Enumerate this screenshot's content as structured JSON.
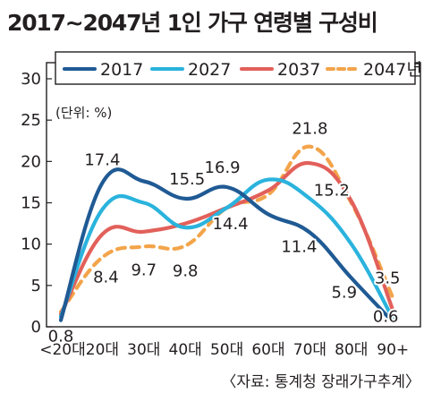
{
  "chart_data": {
    "type": "line",
    "title": "2017~2047년 1인 가구 연령별 구성비",
    "unit_note": "(단위: %)",
    "source": "〈자료: 통계청 장래가구추계〉",
    "categories": [
      "<20대",
      "20대",
      "30대",
      "40대",
      "50대",
      "60대",
      "70대",
      "80대",
      "90+"
    ],
    "ylim": [
      0,
      30
    ],
    "yticks": [
      "0",
      "5",
      "10",
      "15",
      "20",
      "25",
      "30"
    ],
    "legend_position": "top",
    "series": [
      {
        "name": "2017",
        "color": "#1f5a94",
        "dash": false,
        "values": [
          0.8,
          17.4,
          17.6,
          15.5,
          16.9,
          13.6,
          11.4,
          5.9,
          0.6
        ]
      },
      {
        "name": "2027",
        "color": "#2ab3dd",
        "dash": false,
        "values": [
          1.2,
          14.2,
          15.0,
          12.0,
          14.4,
          17.8,
          15.5,
          10.0,
          1.0
        ]
      },
      {
        "name": "2037",
        "color": "#e2605a",
        "dash": false,
        "values": [
          1.5,
          11.2,
          11.5,
          12.5,
          14.4,
          16.5,
          19.8,
          15.2,
          2.0
        ]
      },
      {
        "name": "2047년",
        "color": "#f3a44a",
        "dash": true,
        "values": [
          1.8,
          8.4,
          9.7,
          9.8,
          14.4,
          16.0,
          21.8,
          15.0,
          3.5
        ]
      }
    ],
    "data_labels": [
      {
        "text": "0.8",
        "category": 0,
        "value": 0.8
      },
      {
        "text": "8.4",
        "category": 1,
        "value": 8.4
      },
      {
        "text": "17.4",
        "category": 1,
        "value": 17.4
      },
      {
        "text": "9.7",
        "category": 2,
        "value": 9.7
      },
      {
        "text": "15.5",
        "category": 3,
        "value": 15.5
      },
      {
        "text": "9.8",
        "category": 3,
        "value": 9.8
      },
      {
        "text": "16.9",
        "category": 4,
        "value": 16.9
      },
      {
        "text": "14.4",
        "category": 4,
        "value": 14.4
      },
      {
        "text": "11.4",
        "category": 6,
        "value": 11.4
      },
      {
        "text": "21.8",
        "category": 6,
        "value": 21.8
      },
      {
        "text": "5.9",
        "category": 7,
        "value": 5.9
      },
      {
        "text": "15.2",
        "category": 7,
        "value": 15.2
      },
      {
        "text": "3.5",
        "category": 8,
        "value": 3.5
      },
      {
        "text": "0.6",
        "category": 8,
        "value": 0.6
      }
    ]
  }
}
